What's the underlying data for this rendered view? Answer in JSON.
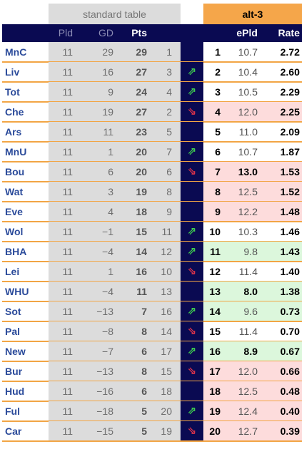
{
  "header": {
    "standard_label": "standard table",
    "alt_label": "alt-3"
  },
  "columns": {
    "pld": "Pld",
    "gd": "GD",
    "pts": "Pts",
    "epld": "ePld",
    "rate": "Rate"
  },
  "colors": {
    "navy": "#0a0a52",
    "orange": "#f5a64a",
    "grey": "#dcdcdc",
    "pink": "#fddcdc",
    "green": "#dcf7dc",
    "team": "#2a4a9a",
    "up": "#3fcf4f",
    "down": "#e0344a"
  },
  "rows": [
    {
      "team": "MnC",
      "pld": "11",
      "gd": "29",
      "pts": "29",
      "pos": "1",
      "arrow": "",
      "arrow_icon": "",
      "rank": "1",
      "epld": "10.7",
      "rate": "2.72",
      "hl": "none",
      "epld_bold": false
    },
    {
      "team": "Liv",
      "pld": "11",
      "gd": "16",
      "pts": "27",
      "pos": "3",
      "arrow": "up",
      "arrow_icon": "⇗",
      "rank": "2",
      "epld": "10.4",
      "rate": "2.60",
      "hl": "none",
      "epld_bold": false
    },
    {
      "team": "Tot",
      "pld": "11",
      "gd": "9",
      "pts": "24",
      "pos": "4",
      "arrow": "up",
      "arrow_icon": "⇗",
      "rank": "3",
      "epld": "10.5",
      "rate": "2.29",
      "hl": "none",
      "epld_bold": false
    },
    {
      "team": "Che",
      "pld": "11",
      "gd": "19",
      "pts": "27",
      "pos": "2",
      "arrow": "down",
      "arrow_icon": "⇘",
      "rank": "4",
      "epld": "12.0",
      "rate": "2.25",
      "hl": "pink",
      "epld_bold": false
    },
    {
      "team": "Ars",
      "pld": "11",
      "gd": "11",
      "pts": "23",
      "pos": "5",
      "arrow": "",
      "arrow_icon": "",
      "rank": "5",
      "epld": "11.0",
      "rate": "2.09",
      "hl": "none",
      "epld_bold": false
    },
    {
      "team": "MnU",
      "pld": "11",
      "gd": "1",
      "pts": "20",
      "pos": "7",
      "arrow": "up",
      "arrow_icon": "⇗",
      "rank": "6",
      "epld": "10.7",
      "rate": "1.87",
      "hl": "none",
      "epld_bold": false
    },
    {
      "team": "Bou",
      "pld": "11",
      "gd": "6",
      "pts": "20",
      "pos": "6",
      "arrow": "down",
      "arrow_icon": "⇘",
      "rank": "7",
      "epld": "13.0",
      "rate": "1.53",
      "hl": "pink",
      "epld_bold": true
    },
    {
      "team": "Wat",
      "pld": "11",
      "gd": "3",
      "pts": "19",
      "pos": "8",
      "arrow": "",
      "arrow_icon": "",
      "rank": "8",
      "epld": "12.5",
      "rate": "1.52",
      "hl": "pink",
      "epld_bold": false
    },
    {
      "team": "Eve",
      "pld": "11",
      "gd": "4",
      "pts": "18",
      "pos": "9",
      "arrow": "",
      "arrow_icon": "",
      "rank": "9",
      "epld": "12.2",
      "rate": "1.48",
      "hl": "pink",
      "epld_bold": false
    },
    {
      "team": "Wol",
      "pld": "11",
      "gd": "−1",
      "pts": "15",
      "pos": "11",
      "arrow": "up",
      "arrow_icon": "⇗",
      "rank": "10",
      "epld": "10.3",
      "rate": "1.46",
      "hl": "none",
      "epld_bold": false
    },
    {
      "team": "BHA",
      "pld": "11",
      "gd": "−4",
      "pts": "14",
      "pos": "12",
      "arrow": "up",
      "arrow_icon": "⇗",
      "rank": "11",
      "epld": "9.8",
      "rate": "1.43",
      "hl": "green",
      "epld_bold": false
    },
    {
      "team": "Lei",
      "pld": "11",
      "gd": "1",
      "pts": "16",
      "pos": "10",
      "arrow": "down",
      "arrow_icon": "⇘",
      "rank": "12",
      "epld": "11.4",
      "rate": "1.40",
      "hl": "none",
      "epld_bold": false
    },
    {
      "team": "WHU",
      "pld": "11",
      "gd": "−4",
      "pts": "11",
      "pos": "13",
      "arrow": "",
      "arrow_icon": "",
      "rank": "13",
      "epld": "8.0",
      "rate": "1.38",
      "hl": "green",
      "epld_bold": true
    },
    {
      "team": "Sot",
      "pld": "11",
      "gd": "−13",
      "pts": "7",
      "pos": "16",
      "arrow": "up",
      "arrow_icon": "⇗",
      "rank": "14",
      "epld": "9.6",
      "rate": "0.73",
      "hl": "green",
      "epld_bold": false
    },
    {
      "team": "Pal",
      "pld": "11",
      "gd": "−8",
      "pts": "8",
      "pos": "14",
      "arrow": "down",
      "arrow_icon": "⇘",
      "rank": "15",
      "epld": "11.4",
      "rate": "0.70",
      "hl": "none",
      "epld_bold": false
    },
    {
      "team": "New",
      "pld": "11",
      "gd": "−7",
      "pts": "6",
      "pos": "17",
      "arrow": "up",
      "arrow_icon": "⇗",
      "rank": "16",
      "epld": "8.9",
      "rate": "0.67",
      "hl": "green",
      "epld_bold": true
    },
    {
      "team": "Bur",
      "pld": "11",
      "gd": "−13",
      "pts": "8",
      "pos": "15",
      "arrow": "down",
      "arrow_icon": "⇘",
      "rank": "17",
      "epld": "12.0",
      "rate": "0.66",
      "hl": "pink",
      "epld_bold": false
    },
    {
      "team": "Hud",
      "pld": "11",
      "gd": "−16",
      "pts": "6",
      "pos": "18",
      "arrow": "",
      "arrow_icon": "",
      "rank": "18",
      "epld": "12.5",
      "rate": "0.48",
      "hl": "pink",
      "epld_bold": false
    },
    {
      "team": "Ful",
      "pld": "11",
      "gd": "−18",
      "pts": "5",
      "pos": "20",
      "arrow": "up",
      "arrow_icon": "⇗",
      "rank": "19",
      "epld": "12.4",
      "rate": "0.40",
      "hl": "pink",
      "epld_bold": false
    },
    {
      "team": "Car",
      "pld": "11",
      "gd": "−15",
      "pts": "5",
      "pos": "19",
      "arrow": "down",
      "arrow_icon": "⇘",
      "rank": "20",
      "epld": "12.7",
      "rate": "0.39",
      "hl": "pink",
      "epld_bold": false
    }
  ]
}
